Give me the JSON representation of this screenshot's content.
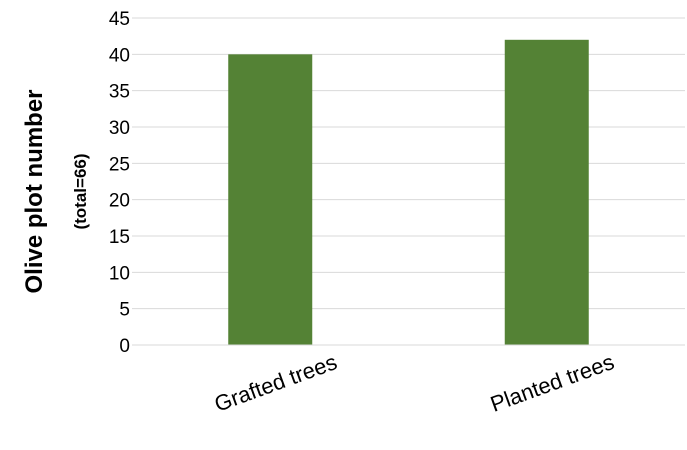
{
  "chart_data": {
    "type": "bar",
    "categories": [
      "Grafted trees",
      "Planted trees"
    ],
    "values": [
      40,
      42
    ],
    "title": "",
    "xlabel": "",
    "ylabel": "Olive plot number",
    "ylabel_sub": "(total=66)",
    "ylim": [
      0,
      45
    ],
    "yticks": [
      0,
      5,
      10,
      15,
      20,
      25,
      30,
      35,
      40,
      45
    ],
    "grid": true,
    "legend": "none",
    "bar_color": "#548235"
  }
}
